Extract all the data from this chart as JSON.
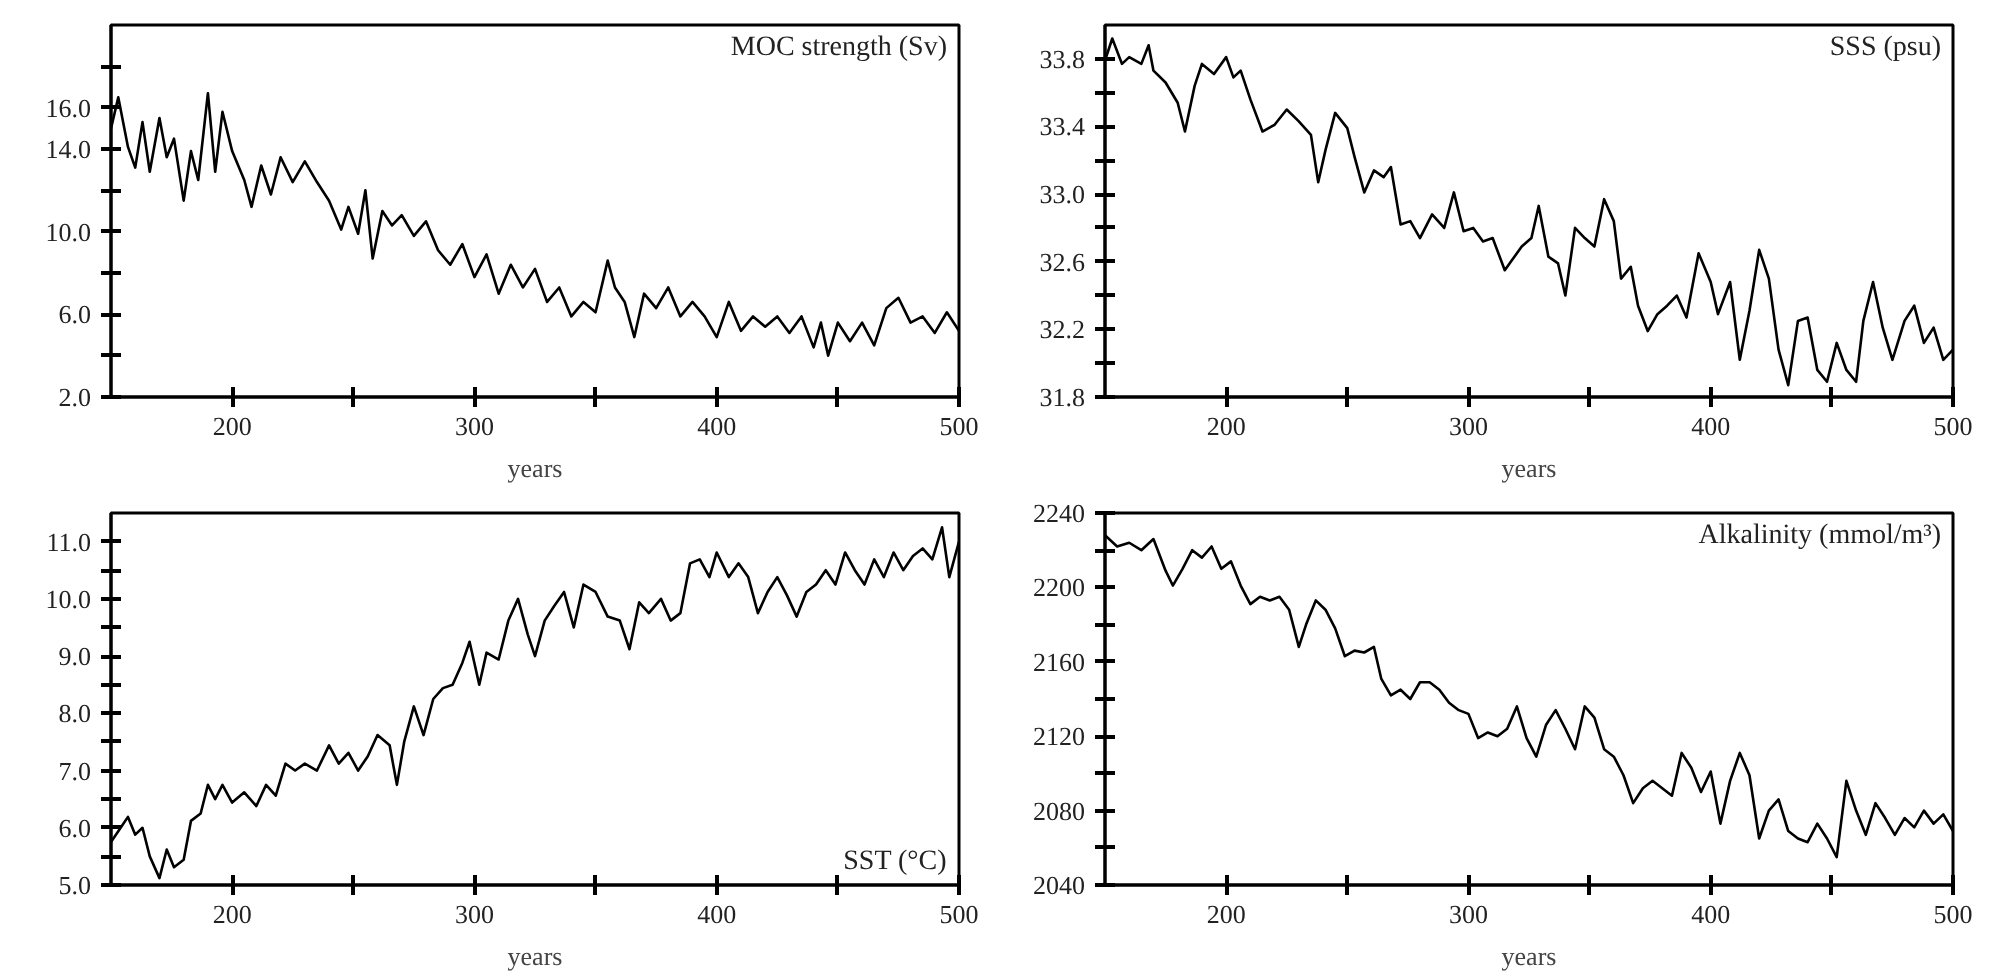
{
  "chart_data": [
    {
      "type": "line",
      "title": "MOC strength (Sv)",
      "xlabel": "years",
      "color": "#000000",
      "xlim": [
        150,
        500
      ],
      "ylim": [
        2,
        20
      ],
      "xticks": [
        200,
        {
          "value": 250,
          "label": null
        },
        300,
        {
          "value": 350,
          "label": null
        },
        400,
        {
          "value": 450,
          "label": null
        },
        500
      ],
      "yticks": [
        {
          "value": 2,
          "label": "2.0"
        },
        {
          "value": 4,
          "label": null
        },
        {
          "value": 6,
          "label": "6.0"
        },
        {
          "value": 8,
          "label": null
        },
        {
          "value": 10,
          "label": "10.0"
        },
        {
          "value": 12,
          "label": null
        },
        {
          "value": 14,
          "label": "14.0"
        },
        {
          "value": 16,
          "label": "16.0"
        },
        {
          "value": 18,
          "label": null
        }
      ],
      "x": [
        150,
        153,
        157,
        160,
        163,
        166,
        170,
        173,
        176,
        180,
        183,
        186,
        190,
        193,
        196,
        200,
        205,
        208,
        212,
        216,
        220,
        225,
        230,
        235,
        240,
        245,
        248,
        252,
        255,
        258,
        262,
        266,
        270,
        275,
        280,
        285,
        290,
        295,
        300,
        305,
        310,
        315,
        320,
        325,
        330,
        335,
        340,
        345,
        350,
        355,
        358,
        362,
        366,
        370,
        375,
        380,
        385,
        390,
        395,
        400,
        405,
        410,
        415,
        420,
        425,
        430,
        435,
        440,
        443,
        446,
        450,
        455,
        460,
        465,
        470,
        475,
        480,
        485,
        490,
        495,
        500
      ],
      "values": [
        15.0,
        16.5,
        14.1,
        13.1,
        15.3,
        12.9,
        15.5,
        13.6,
        14.5,
        11.5,
        13.9,
        12.5,
        16.7,
        12.9,
        15.8,
        13.9,
        12.5,
        11.2,
        13.2,
        11.8,
        13.6,
        12.4,
        13.4,
        12.4,
        11.5,
        10.1,
        11.2,
        9.9,
        12.0,
        8.7,
        11.0,
        10.3,
        10.8,
        9.8,
        10.5,
        9.1,
        8.4,
        9.4,
        7.8,
        8.9,
        7.0,
        8.4,
        7.3,
        8.2,
        6.6,
        7.3,
        5.9,
        6.6,
        6.1,
        8.6,
        7.3,
        6.6,
        4.9,
        7.0,
        6.3,
        7.3,
        5.9,
        6.6,
        5.9,
        4.9,
        6.6,
        5.2,
        5.9,
        5.4,
        5.9,
        5.1,
        5.9,
        4.4,
        5.6,
        4.0,
        5.6,
        4.7,
        5.6,
        4.5,
        6.3,
        6.8,
        5.6,
        5.9,
        5.1,
        6.1,
        5.2
      ]
    },
    {
      "type": "line",
      "title": "SSS (psu)",
      "xlabel": "years",
      "color": "#000000",
      "xlim": [
        150,
        500
      ],
      "ylim": [
        31.8,
        34.0
      ],
      "xticks": [
        200,
        {
          "value": 250,
          "label": null
        },
        300,
        {
          "value": 350,
          "label": null
        },
        400,
        {
          "value": 450,
          "label": null
        },
        500
      ],
      "yticks": [
        31.8,
        {
          "value": 32.0,
          "label": null
        },
        32.2,
        {
          "value": 32.4,
          "label": null
        },
        32.6,
        {
          "value": 32.8,
          "label": null
        },
        {
          "value": 33.0,
          "label": "33.0"
        },
        {
          "value": 33.2,
          "label": null
        },
        33.4,
        {
          "value": 33.6,
          "label": null
        },
        33.8
      ],
      "x": [
        150,
        153,
        157,
        160,
        165,
        168,
        170,
        175,
        180,
        183,
        187,
        190,
        195,
        200,
        203,
        206,
        210,
        215,
        220,
        225,
        230,
        235,
        238,
        241,
        245,
        250,
        253,
        257,
        261,
        265,
        268,
        272,
        276,
        280,
        285,
        290,
        294,
        298,
        302,
        306,
        310,
        315,
        318,
        322,
        326,
        329,
        333,
        337,
        340,
        344,
        348,
        352,
        356,
        360,
        363,
        367,
        370,
        374,
        378,
        382,
        386,
        390,
        395,
        400,
        403,
        408,
        412,
        416,
        420,
        424,
        428,
        432,
        436,
        440,
        444,
        448,
        452,
        456,
        460,
        463,
        467,
        471,
        475,
        480,
        484,
        488,
        492,
        496,
        500
      ],
      "values": [
        33.79,
        33.92,
        33.77,
        33.81,
        33.77,
        33.88,
        33.73,
        33.66,
        33.54,
        33.37,
        33.64,
        33.77,
        33.71,
        33.81,
        33.69,
        33.73,
        33.56,
        33.37,
        33.41,
        33.5,
        33.43,
        33.35,
        33.07,
        33.26,
        33.48,
        33.39,
        33.22,
        33.01,
        33.14,
        33.1,
        33.16,
        32.82,
        32.84,
        32.74,
        32.88,
        32.8,
        33.01,
        32.78,
        32.8,
        32.72,
        32.74,
        32.55,
        32.61,
        32.69,
        32.74,
        32.93,
        32.63,
        32.59,
        32.4,
        32.8,
        32.74,
        32.69,
        32.97,
        32.84,
        32.5,
        32.57,
        32.34,
        32.19,
        32.29,
        32.34,
        32.4,
        32.27,
        32.65,
        32.48,
        32.29,
        32.48,
        32.02,
        32.31,
        32.67,
        32.5,
        32.08,
        31.87,
        32.25,
        32.27,
        31.96,
        31.89,
        32.12,
        31.96,
        31.89,
        32.25,
        32.48,
        32.21,
        32.02,
        32.25,
        32.34,
        32.12,
        32.21,
        32.02,
        32.08
      ]
    },
    {
      "type": "line",
      "title": "SST (°C)",
      "xlabel": "years",
      "color": "#000000",
      "xlim": [
        150,
        500
      ],
      "ylim": [
        5,
        11.5
      ],
      "xticks": [
        200,
        {
          "value": 250,
          "label": null
        },
        300,
        {
          "value": 350,
          "label": null
        },
        400,
        {
          "value": 450,
          "label": null
        },
        500
      ],
      "yticks": [
        {
          "value": 5,
          "label": "5.0"
        },
        {
          "value": 5.5,
          "label": null
        },
        {
          "value": 6,
          "label": "6.0"
        },
        {
          "value": 6.5,
          "label": null
        },
        {
          "value": 7,
          "label": "7.0"
        },
        {
          "value": 7.5,
          "label": null
        },
        {
          "value": 8,
          "label": "8.0"
        },
        {
          "value": 8.5,
          "label": null
        },
        {
          "value": 9,
          "label": "9.0"
        },
        {
          "value": 9.5,
          "label": null
        },
        {
          "value": 10,
          "label": "10.0"
        },
        {
          "value": 10.5,
          "label": null
        },
        {
          "value": 11,
          "label": "11.0"
        }
      ],
      "x": [
        150,
        153,
        157,
        160,
        163,
        166,
        170,
        173,
        176,
        180,
        183,
        187,
        190,
        193,
        196,
        200,
        205,
        210,
        214,
        218,
        222,
        226,
        230,
        235,
        240,
        244,
        248,
        252,
        256,
        260,
        265,
        268,
        271,
        275,
        279,
        283,
        287,
        291,
        295,
        298,
        302,
        305,
        310,
        314,
        318,
        322,
        325,
        329,
        333,
        337,
        341,
        345,
        350,
        355,
        360,
        364,
        368,
        372,
        377,
        381,
        385,
        389,
        393,
        397,
        400,
        405,
        409,
        413,
        417,
        421,
        425,
        429,
        433,
        437,
        441,
        445,
        449,
        453,
        457,
        461,
        465,
        469,
        473,
        477,
        481,
        485,
        489,
        493,
        496,
        500
      ],
      "values": [
        5.75,
        5.94,
        6.19,
        5.88,
        6.0,
        5.5,
        5.12,
        5.62,
        5.31,
        5.44,
        6.12,
        6.25,
        6.75,
        6.5,
        6.75,
        6.44,
        6.62,
        6.38,
        6.75,
        6.56,
        7.12,
        7.0,
        7.12,
        7.0,
        7.44,
        7.12,
        7.31,
        7.0,
        7.25,
        7.62,
        7.44,
        6.75,
        7.5,
        8.12,
        7.62,
        8.25,
        8.44,
        8.5,
        8.88,
        9.25,
        8.5,
        9.06,
        8.94,
        9.62,
        10.0,
        9.38,
        9.0,
        9.62,
        9.88,
        10.12,
        9.5,
        10.25,
        10.12,
        9.69,
        9.62,
        9.12,
        9.94,
        9.75,
        10.0,
        9.62,
        9.75,
        10.62,
        10.69,
        10.38,
        10.81,
        10.38,
        10.62,
        10.38,
        9.75,
        10.12,
        10.38,
        10.06,
        9.69,
        10.12,
        10.25,
        10.5,
        10.25,
        10.81,
        10.5,
        10.25,
        10.69,
        10.38,
        10.81,
        10.5,
        10.75,
        10.88,
        10.69,
        11.25,
        10.38,
        11.0
      ]
    },
    {
      "type": "line",
      "title": "Alkalinity (mmol/m³)",
      "xlabel": "years",
      "color": "#000000",
      "xlim": [
        150,
        500
      ],
      "ylim": [
        2040,
        2240
      ],
      "xticks": [
        200,
        {
          "value": 250,
          "label": null
        },
        300,
        {
          "value": 350,
          "label": null
        },
        400,
        {
          "value": 450,
          "label": null
        },
        500
      ],
      "yticks": [
        2040,
        {
          "value": 2060,
          "label": null
        },
        2080,
        {
          "value": 2100,
          "label": null
        },
        2120,
        {
          "value": 2140,
          "label": null
        },
        2160,
        {
          "value": 2180,
          "label": null
        },
        2200,
        {
          "value": 2220,
          "label": null
        },
        2240
      ],
      "x": [
        150,
        155,
        160,
        165,
        170,
        175,
        178,
        182,
        186,
        190,
        194,
        198,
        202,
        206,
        210,
        214,
        218,
        222,
        226,
        230,
        233,
        237,
        241,
        245,
        249,
        253,
        257,
        261,
        264,
        268,
        272,
        276,
        280,
        284,
        288,
        292,
        296,
        300,
        304,
        308,
        312,
        316,
        320,
        324,
        328,
        332,
        336,
        340,
        344,
        348,
        352,
        356,
        360,
        364,
        368,
        372,
        376,
        380,
        384,
        388,
        392,
        396,
        400,
        404,
        408,
        412,
        416,
        420,
        424,
        428,
        432,
        436,
        440,
        444,
        448,
        452,
        456,
        460,
        464,
        468,
        472,
        476,
        480,
        484,
        488,
        492,
        496,
        500
      ],
      "values": [
        2228,
        2222,
        2224,
        2220,
        2226,
        2209,
        2201,
        2210,
        2220,
        2216,
        2222,
        2210,
        2214,
        2201,
        2191,
        2195,
        2193,
        2195,
        2188,
        2168,
        2180,
        2193,
        2188,
        2178,
        2163,
        2166,
        2165,
        2168,
        2151,
        2142,
        2145,
        2140,
        2149,
        2149,
        2145,
        2138,
        2134,
        2132,
        2119,
        2122,
        2120,
        2124,
        2136,
        2119,
        2109,
        2126,
        2134,
        2124,
        2113,
        2136,
        2130,
        2113,
        2109,
        2099,
        2084,
        2092,
        2096,
        2092,
        2088,
        2111,
        2103,
        2090,
        2101,
        2073,
        2096,
        2111,
        2099,
        2065,
        2080,
        2086,
        2069,
        2065,
        2063,
        2073,
        2065,
        2055,
        2096,
        2080,
        2067,
        2084,
        2076,
        2067,
        2076,
        2071,
        2080,
        2073,
        2078,
        2069
      ]
    }
  ]
}
